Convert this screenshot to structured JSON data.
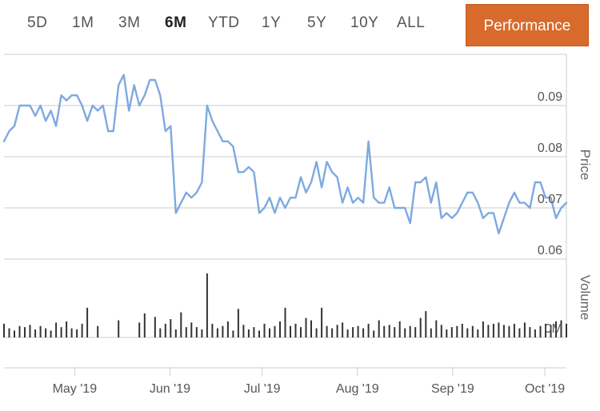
{
  "range_selector": {
    "buttons": [
      "5D",
      "1M",
      "3M",
      "6M",
      "YTD",
      "1Y",
      "5Y",
      "10Y",
      "ALL"
    ],
    "active": "6M"
  },
  "performance_button": {
    "label": "Performance"
  },
  "colors": {
    "line": "#7ea9e0",
    "bar": "#333333",
    "grid": "#cccccc",
    "accent": "#d86a2b"
  },
  "chart_data": {
    "type": "line",
    "title": "",
    "price_axis": {
      "title": "Price",
      "ticks": [
        "0.09",
        "0.08",
        "0.07",
        "0.06"
      ],
      "tick_values": [
        0.09,
        0.08,
        0.07,
        0.06
      ],
      "ylim": [
        0.0575,
        0.1
      ]
    },
    "volume_axis": {
      "title": "Volume",
      "ticks": [
        "0M"
      ],
      "tick_values": [
        0
      ]
    },
    "x_axis": {
      "labels": [
        "May '19",
        "Jun '19",
        "Jul '19",
        "Aug '19",
        "Sep '19",
        "Oct '19"
      ],
      "label_dates": [
        "2019-05-01",
        "2019-06-01",
        "2019-07-01",
        "2019-08-01",
        "2019-09-01",
        "2019-10-01"
      ],
      "start": "2019-04-08",
      "end": "2019-10-08"
    },
    "series": [
      {
        "name": "Price",
        "values": [
          0.083,
          0.085,
          0.086,
          0.09,
          0.09,
          0.09,
          0.088,
          0.09,
          0.087,
          0.089,
          0.086,
          0.092,
          0.091,
          0.092,
          0.092,
          0.09,
          0.087,
          0.09,
          0.089,
          0.09,
          0.085,
          0.085,
          0.094,
          0.096,
          0.089,
          0.094,
          0.09,
          0.092,
          0.095,
          0.095,
          0.092,
          0.085,
          0.086,
          0.069,
          0.071,
          0.073,
          0.072,
          0.073,
          0.075,
          0.09,
          0.087,
          0.085,
          0.083,
          0.083,
          0.082,
          0.077,
          0.077,
          0.078,
          0.077,
          0.069,
          0.07,
          0.072,
          0.069,
          0.072,
          0.07,
          0.072,
          0.072,
          0.076,
          0.073,
          0.075,
          0.079,
          0.074,
          0.079,
          0.077,
          0.076,
          0.071,
          0.074,
          0.071,
          0.072,
          0.071,
          0.083,
          0.072,
          0.071,
          0.071,
          0.074,
          0.07,
          0.07,
          0.07,
          0.067,
          0.075,
          0.075,
          0.076,
          0.071,
          0.075,
          0.068,
          0.069,
          0.068,
          0.069,
          0.071,
          0.073,
          0.073,
          0.071,
          0.068,
          0.069,
          0.069,
          0.065,
          0.068,
          0.071,
          0.073,
          0.071,
          0.071,
          0.07,
          0.075,
          0.075,
          0.072,
          0.072,
          0.068,
          0.07,
          0.071
        ]
      },
      {
        "name": "Volume",
        "values": [
          1.2,
          0.8,
          0.6,
          1.0,
          0.9,
          1.1,
          0.7,
          1.0,
          0.8,
          0.6,
          1.3,
          0.9,
          1.4,
          0.8,
          0.7,
          1.2,
          2.6,
          0,
          1.0,
          0,
          0,
          0,
          1.5,
          0,
          0,
          0,
          1.3,
          2.1,
          0,
          1.8,
          0.8,
          1.2,
          1.6,
          0.7,
          2.2,
          0.9,
          1.3,
          0.9,
          0.7,
          5.6,
          1.2,
          0.8,
          1.0,
          1.4,
          0.6,
          2.5,
          1.1,
          0.7,
          0.9,
          0.6,
          1.2,
          0.8,
          1.0,
          1.4,
          2.6,
          1.0,
          1.2,
          0.9,
          1.7,
          1.5,
          0.8,
          2.6,
          1.0,
          0.8,
          1.1,
          1.3,
          0.7,
          0.9,
          1.0,
          0.8,
          1.2,
          0.6,
          1.5,
          1.0,
          1.1,
          0.9,
          1.4,
          0.8,
          1.0,
          0.9,
          1.7,
          2.3,
          0.8,
          1.5,
          1.1,
          0.7,
          0.9,
          1.0,
          1.2,
          0.8,
          1.0,
          0.7,
          1.4,
          1.1,
          1.2,
          1.3,
          1.1,
          1.0,
          1.2,
          0.8,
          1.3,
          0.9,
          0.7,
          1.0,
          1.2,
          1.1,
          1.4,
          1.5,
          1.2
        ],
        "vlim": [
          0,
          5.6
        ]
      }
    ],
    "grid": true,
    "legend": "none"
  }
}
